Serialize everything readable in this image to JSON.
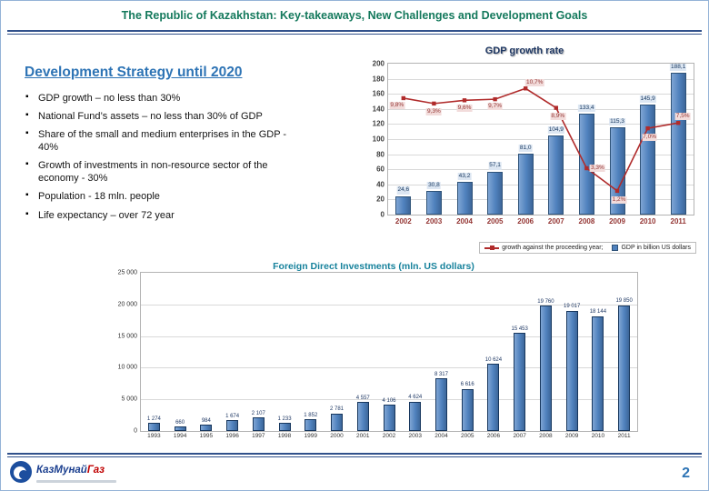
{
  "header": {
    "title": "The Republic of Kazakhstan: Key-takeaways, New Challenges and Development Goals"
  },
  "left": {
    "heading": "Development Strategy until 2020",
    "bullets": [
      "GDP growth – no less than 30%",
      "National Fund’s assets – no less than 30% of GDP",
      "Share of the small and medium enterprises in the GDP - 40%",
      "Growth of investments in non-resource sector of the economy - 30%",
      "Population - 18 mln. people",
      "Life expectancy – over 72 year"
    ]
  },
  "chart_data": [
    {
      "type": "bar",
      "subtype": "combo-bar-line",
      "title": "GDP growth rate",
      "categories": [
        "2002",
        "2003",
        "2004",
        "2005",
        "2006",
        "2007",
        "2008",
        "2009",
        "2010",
        "2011"
      ],
      "series": [
        {
          "name": "GDP in billion US dollars",
          "type": "bar",
          "values": [
            24.6,
            30.8,
            43.2,
            57.1,
            81.0,
            104.9,
            133.4,
            115.3,
            145.9,
            188.1
          ],
          "labels": [
            "24,6",
            "30,8",
            "43,2",
            "57,1",
            "81,0",
            "104,9",
            "133,4",
            "115,3",
            "145,9",
            "188,1"
          ]
        },
        {
          "name": "growth against the proceeding year;",
          "type": "line",
          "values": [
            9.8,
            9.3,
            9.6,
            9.7,
            10.7,
            8.9,
            3.3,
            1.2,
            7.0,
            7.5
          ],
          "labels": [
            "9,8%",
            "9,3%",
            "9,6%",
            "9,7%",
            "10,7%",
            "8,9%",
            "3,3%",
            "1,2%",
            "7,0%",
            "7,5%"
          ]
        }
      ],
      "ylim": [
        0,
        200
      ],
      "yticks": [
        "200",
        "180",
        "160",
        "140",
        "120",
        "100",
        "80",
        "60",
        "40",
        "20",
        "0"
      ],
      "secondary_ylim": [
        -1,
        13
      ],
      "grid": true,
      "legend_position": "bottom-right"
    },
    {
      "type": "bar",
      "title": "Foreign Direct Investments (mln. US dollars)",
      "categories": [
        "1993",
        "1994",
        "1995",
        "1996",
        "1997",
        "1998",
        "1999",
        "2000",
        "2001",
        "2002",
        "2003",
        "2004",
        "2005",
        "2006",
        "2007",
        "2008",
        "2009",
        "2010",
        "2011"
      ],
      "values": [
        1274,
        660,
        984,
        1674,
        2107,
        1233,
        1852,
        2781,
        4557,
        4106,
        4624,
        8317,
        6616,
        10624,
        15453,
        19760,
        19017,
        18144,
        19850
      ],
      "labels": [
        "1 274",
        "660",
        "984",
        "1 674",
        "2 107",
        "1 233",
        "1 852",
        "2 781",
        "4 557",
        "4 106",
        "4 624",
        "8 317",
        "6 616",
        "10 624",
        "15 453",
        "19 760",
        "19 017",
        "18 144",
        "19 850"
      ],
      "ylim": [
        0,
        25000
      ],
      "yticks": [
        "25 000",
        "20 000",
        "15 000",
        "10 000",
        "5 000",
        "0"
      ],
      "grid": true,
      "legend_position": "none"
    }
  ],
  "footer": {
    "logo_text_blue": "КазМунай",
    "logo_text_red": "Газ",
    "page_number": "2"
  },
  "colors": {
    "header_green": "#14795c",
    "accent_blue": "#2e74b5",
    "bar_blue": "#4f81bd",
    "line_red": "#b02b2b",
    "axis_maroon": "#943634",
    "rule_navy": "#31518b",
    "fdi_title_teal": "#17829c",
    "logo_blue": "#1b3f8f",
    "logo_red": "#c00000"
  }
}
